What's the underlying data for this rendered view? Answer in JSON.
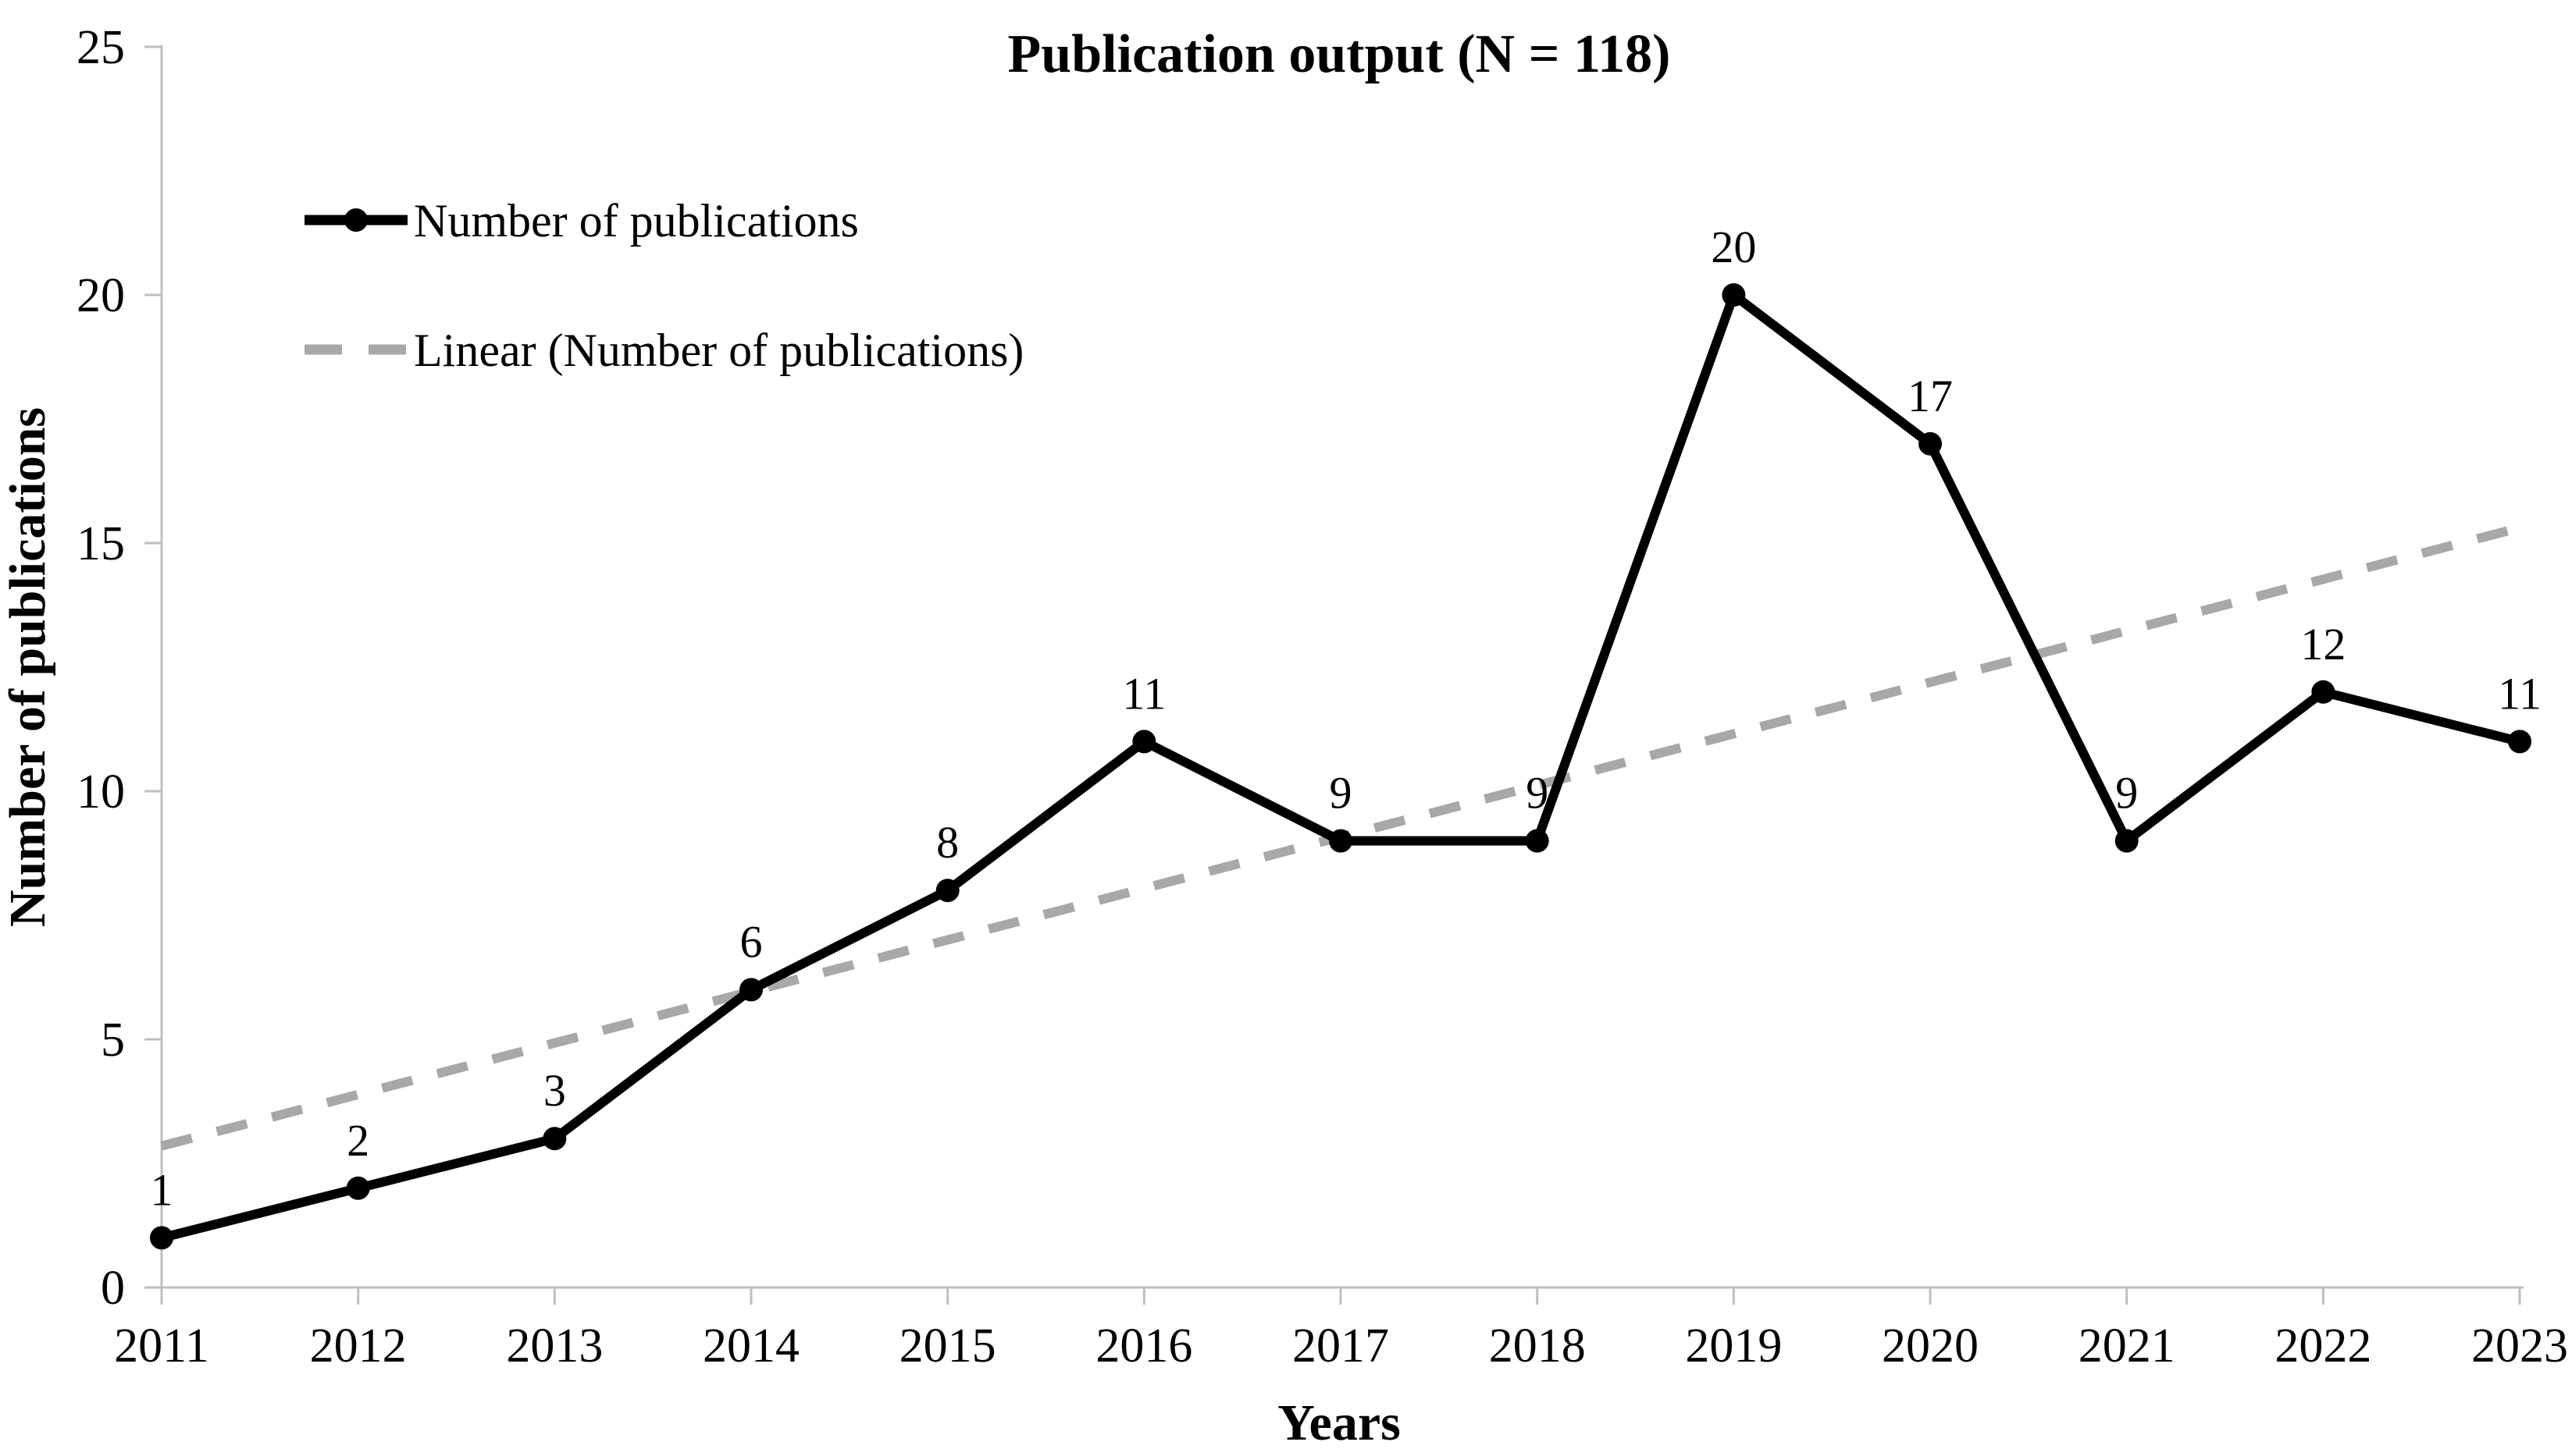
{
  "chart_data": {
    "type": "line",
    "title": "Publication output (N = 118)",
    "xlabel": "Years",
    "ylabel": "Number of publications",
    "categories": [
      "2011",
      "2012",
      "2013",
      "2014",
      "2015",
      "2016",
      "2017",
      "2018",
      "2019",
      "2020",
      "2021",
      "2022",
      "2023"
    ],
    "series": [
      {
        "name": "Number of publications",
        "values": [
          1,
          2,
          3,
          6,
          8,
          11,
          9,
          9,
          20,
          17,
          9,
          12,
          11
        ],
        "color": "#000000",
        "line_style": "solid",
        "marker": "circle",
        "data_labels": [
          1,
          2,
          3,
          6,
          8,
          11,
          9,
          9,
          20,
          17,
          9,
          12,
          11
        ]
      },
      {
        "name": "Linear (Number of publications)",
        "trendline_of": "Number of publications",
        "color": "#A8A8A8",
        "line_style": "dashed",
        "endpoint_values": [
          2.85,
          15.31
        ]
      }
    ],
    "legend": {
      "position": "inside-upper-left",
      "entries": [
        "Number of publications",
        "Linear (Number of publications)"
      ]
    },
    "ylim": [
      0,
      25
    ],
    "yticks": [
      0,
      5,
      10,
      15,
      20,
      25
    ],
    "grid": false,
    "axis_color": "#BFBFBF",
    "background": "#FFFFFF"
  }
}
